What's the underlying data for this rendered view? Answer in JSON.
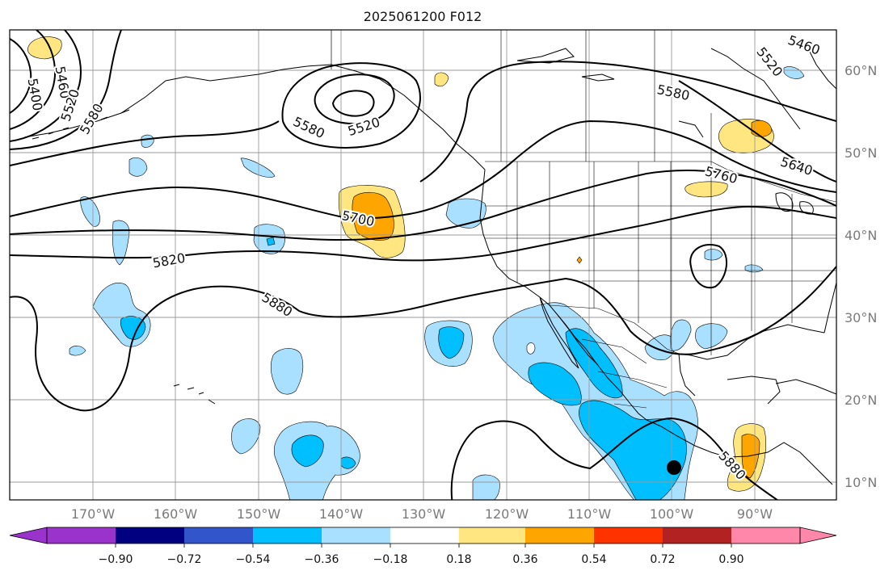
{
  "title": "2025061200 F012",
  "longitude_labels": [
    "170°W",
    "160°W",
    "150°W",
    "140°W",
    "130°W",
    "120°W",
    "110°W",
    "100°W",
    "90°W"
  ],
  "latitude_labels": [
    "10°N",
    "20°N",
    "30°N",
    "40°N",
    "50°N",
    "60°N"
  ],
  "colorbar": {
    "ticks": [
      "−0.90",
      "−0.72",
      "−0.54",
      "−0.36",
      "−0.18",
      "0.18",
      "0.36",
      "0.54",
      "0.72",
      "0.90"
    ],
    "colors": [
      "#9933cc",
      "#000080",
      "#3355cc",
      "#00bfff",
      "#aae0ff",
      "#ffffff",
      "#ffe680",
      "#ffa500",
      "#ff3300",
      "#b22222",
      "#ff88aa"
    ]
  },
  "contour_labels": [
    "5400",
    "5460",
    "5520",
    "5580",
    "5580",
    "5520",
    "5460",
    "5520",
    "5580",
    "5640",
    "5700",
    "5760",
    "5820",
    "5880",
    "5880"
  ],
  "fill_colors": {
    "light_blue": "#aae0ff",
    "blue": "#00bfff",
    "light_yellow": "#ffe680",
    "orange": "#ffa500"
  },
  "marker": "center-dot"
}
